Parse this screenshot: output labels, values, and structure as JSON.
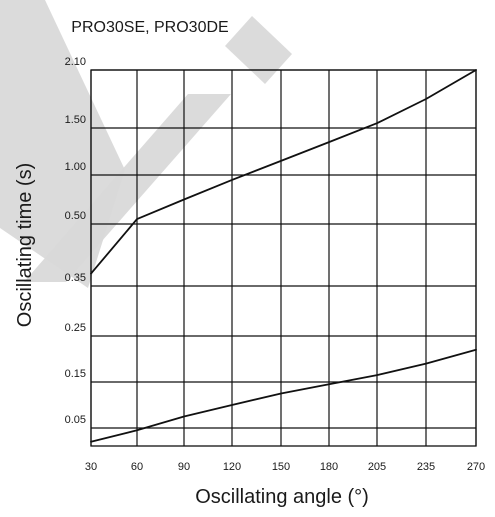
{
  "chart_data": {
    "type": "line",
    "title": "PRO30SE, PRO30DE",
    "xlabel": "Oscillating angle (°)",
    "ylabel": "Oscillating time (s)",
    "xlim": [
      30,
      270
    ],
    "x_ticks": [
      30,
      60,
      90,
      120,
      150,
      180,
      205,
      235,
      270
    ],
    "y_ticks": [
      0.05,
      0.15,
      0.25,
      0.35,
      0.5,
      1.0,
      1.5,
      2.1
    ],
    "y_tick_labels": [
      "0.05",
      "0.15",
      "0.25",
      "0.35",
      "0.50",
      "1.00",
      "1.50",
      "2.10"
    ],
    "grid": true,
    "series": [
      {
        "x": [
          30,
          60,
          90,
          120,
          150,
          180,
          205,
          235,
          270
        ],
        "y": [
          0.38,
          0.55,
          0.75,
          0.95,
          1.15,
          1.35,
          1.55,
          1.8,
          2.1
        ]
      },
      {
        "x": [
          30,
          60,
          90,
          120,
          150,
          180,
          205,
          235,
          270
        ],
        "y": [
          0.02,
          0.045,
          0.075,
          0.1,
          0.125,
          0.145,
          0.165,
          0.19,
          0.22
        ]
      }
    ],
    "colors": {
      "line": "#111111",
      "grid": "#111111",
      "text": "#1a1a1a",
      "background": "#ffffff",
      "watermark": "#d9d9d9"
    }
  }
}
